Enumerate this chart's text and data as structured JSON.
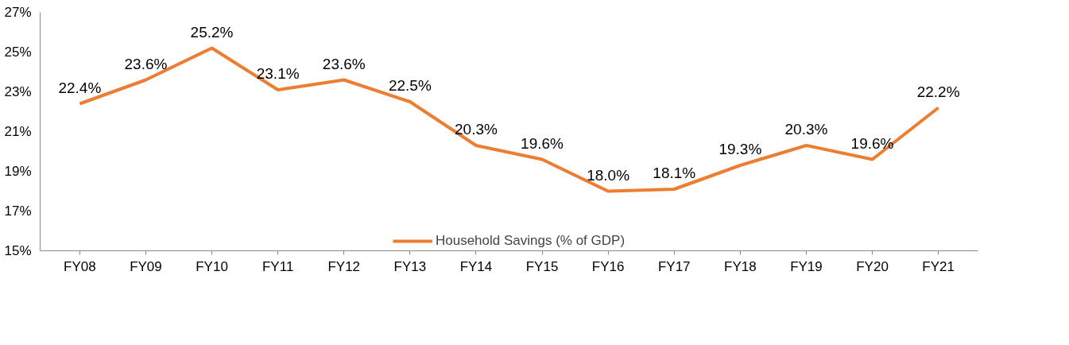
{
  "chart_data": {
    "type": "line",
    "categories": [
      "FY08",
      "FY09",
      "FY10",
      "FY11",
      "FY12",
      "FY13",
      "FY14",
      "FY15",
      "FY16",
      "FY17",
      "FY18",
      "FY19",
      "FY20",
      "FY21"
    ],
    "series": [
      {
        "name": "Household Savings (% of GDP)",
        "color": "#ed7d31",
        "values": [
          22.4,
          23.6,
          25.2,
          23.1,
          23.6,
          22.5,
          20.3,
          19.6,
          18.0,
          18.1,
          19.3,
          20.3,
          19.6,
          22.2
        ],
        "value_labels": [
          "22.4%",
          "23.6%",
          "25.2%",
          "23.1%",
          "23.6%",
          "22.5%",
          "20.3%",
          "19.6%",
          "18.0%",
          "18.1%",
          "19.3%",
          "20.3%",
          "19.6%",
          "22.2%"
        ]
      }
    ],
    "ylim": [
      15,
      27
    ],
    "yticks": [
      {
        "value": 15,
        "label": "15%"
      },
      {
        "value": 17,
        "label": "17%"
      },
      {
        "value": 19,
        "label": "19%"
      },
      {
        "value": 21,
        "label": "21%"
      },
      {
        "value": 23,
        "label": "23%"
      },
      {
        "value": 25,
        "label": "25%"
      },
      {
        "value": 27,
        "label": "27%"
      }
    ],
    "grid": false,
    "legend": "bottom",
    "marker": "none",
    "line_style": "solid"
  }
}
